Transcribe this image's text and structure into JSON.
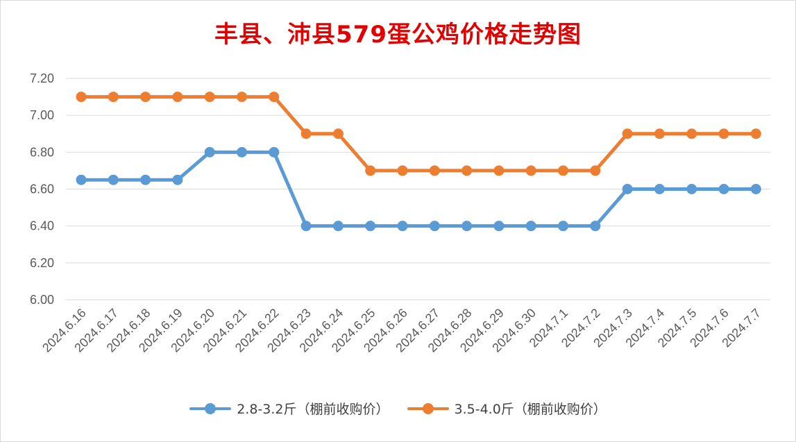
{
  "chart_data": {
    "type": "line",
    "title": "丰县、沛县579蛋公鸡价格走势图",
    "categories": [
      "2024.6.16",
      "2024.6.17",
      "2024.6.18",
      "2024.6.19",
      "2024.6.20",
      "2024.6.21",
      "2024.6.22",
      "2024.6.23",
      "2024.6.24",
      "2024.6.25",
      "2024.6.26",
      "2024.6.27",
      "2024.6.28",
      "2024.6.29",
      "2024.6.30",
      "2024.7.1",
      "2024.7.2",
      "2024.7.3",
      "2024.7.4",
      "2024.7.5",
      "2024.7.6",
      "2024.7.7"
    ],
    "series": [
      {
        "name": "2.8-3.2斤（棚前收购价）",
        "color": "#5b9bd5",
        "values": [
          6.65,
          6.65,
          6.65,
          6.65,
          6.8,
          6.8,
          6.8,
          6.4,
          6.4,
          6.4,
          6.4,
          6.4,
          6.4,
          6.4,
          6.4,
          6.4,
          6.4,
          6.6,
          6.6,
          6.6,
          6.6,
          6.6
        ]
      },
      {
        "name": "3.5-4.0斤（棚前收购价）",
        "color": "#ed7d31",
        "values": [
          7.1,
          7.1,
          7.1,
          7.1,
          7.1,
          7.1,
          7.1,
          6.9,
          6.9,
          6.7,
          6.7,
          6.7,
          6.7,
          6.7,
          6.7,
          6.7,
          6.7,
          6.9,
          6.9,
          6.9,
          6.9,
          6.9
        ]
      }
    ],
    "yticks": [
      "6.00",
      "6.20",
      "6.40",
      "6.60",
      "6.80",
      "7.00",
      "7.20"
    ],
    "ylim": [
      6.0,
      7.2
    ],
    "grid": true,
    "legend": "bottom"
  },
  "colors": {
    "title": "#e30000",
    "grid": "#d9d9d9",
    "axis_text": "#595959"
  }
}
